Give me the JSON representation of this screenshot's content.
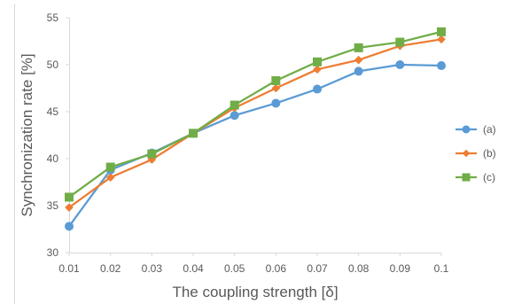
{
  "chart_data": {
    "type": "line",
    "title": "",
    "xlabel": "The coupling strength [δ]",
    "ylabel": "Synchronization rate [%]",
    "x": [
      0.01,
      0.02,
      0.03,
      0.04,
      0.05,
      0.06,
      0.07,
      0.08,
      0.09,
      0.1
    ],
    "x_tick_labels": [
      "0.01",
      "0.02",
      "0.03",
      "0.04",
      "0.05",
      "0.06",
      "0.07",
      "0.08",
      "0.09",
      "0.1"
    ],
    "ylim": [
      30,
      55
    ],
    "y_ticks": [
      30,
      35,
      40,
      45,
      50,
      55
    ],
    "y_tick_labels": [
      "30",
      "35",
      "40",
      "45",
      "50",
      "55"
    ],
    "grid": false,
    "legend_position": "right",
    "series": [
      {
        "name": "(a)",
        "marker": "circle",
        "color": "#5B9BD5",
        "values": [
          32.8,
          38.8,
          40.6,
          42.7,
          44.6,
          45.9,
          47.4,
          49.3,
          50.0,
          49.9
        ]
      },
      {
        "name": "(b)",
        "marker": "diamond",
        "color": "#ED7D31",
        "values": [
          34.8,
          38.0,
          39.9,
          42.7,
          45.4,
          47.5,
          49.5,
          50.5,
          52.0,
          52.7
        ]
      },
      {
        "name": "(c)",
        "marker": "square",
        "color": "#70AD47",
        "values": [
          35.9,
          39.1,
          40.5,
          42.7,
          45.7,
          48.3,
          50.3,
          51.8,
          52.4,
          53.5
        ]
      }
    ]
  }
}
